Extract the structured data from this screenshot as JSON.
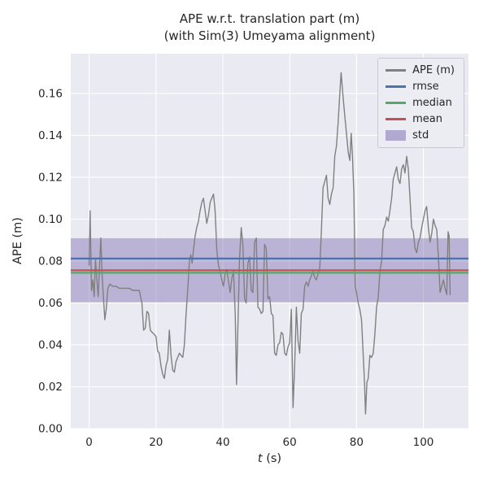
{
  "chart_data": {
    "type": "line",
    "title_line1": "APE w.r.t. translation part (m)",
    "title_line2": "(with Sim(3) Umeyama alignment)",
    "xlabel": "t (s)",
    "xlabel_math": "t",
    "xlabel_rest": " (s)",
    "ylabel": "APE (m)",
    "xlim": [
      -5.5,
      113.5
    ],
    "ylim": [
      0,
      0.179
    ],
    "grid": true,
    "xticks": [
      0,
      20,
      40,
      60,
      80,
      100
    ],
    "xtick_labels": [
      "0",
      "20",
      "40",
      "60",
      "80",
      "100"
    ],
    "yticks": [
      0,
      0.02,
      0.04,
      0.06,
      0.08,
      0.1,
      0.12,
      0.14,
      0.16
    ],
    "ytick_labels": [
      "0.00",
      "0.02",
      "0.04",
      "0.06",
      "0.08",
      "0.10",
      "0.12",
      "0.14",
      "0.16"
    ],
    "colors": {
      "figure_bg": "#ffffff",
      "axes_bg": "#eaeaf2",
      "grid": "#ffffff",
      "text": "#262626",
      "ape": "#808080",
      "rmse": "#4c72b0",
      "median": "#55a868",
      "mean": "#c44e52",
      "std": "#8172b2"
    },
    "stats": {
      "rmse": 0.0812,
      "median": 0.0744,
      "mean": 0.0756,
      "std_band": [
        0.0603,
        0.0909
      ]
    },
    "legend": [
      {
        "label": "APE (m)",
        "color": "#808080",
        "swatch": "line"
      },
      {
        "label": "rmse",
        "color": "#4c72b0",
        "swatch": "line"
      },
      {
        "label": "median",
        "color": "#55a868",
        "swatch": "line"
      },
      {
        "label": "mean",
        "color": "#c44e52",
        "swatch": "line"
      },
      {
        "label": "std",
        "color": "#8172b2",
        "swatch": "patch"
      }
    ],
    "series": [
      {
        "name": "APE (m)",
        "points": [
          [
            0,
            0.078
          ],
          [
            0.3,
            0.104
          ],
          [
            0.7,
            0.066
          ],
          [
            1.1,
            0.071
          ],
          [
            1.5,
            0.063
          ],
          [
            1.9,
            0.081
          ],
          [
            2.3,
            0.071
          ],
          [
            2.7,
            0.063
          ],
          [
            3.1,
            0.077
          ],
          [
            3.5,
            0.091
          ],
          [
            3.9,
            0.073
          ],
          [
            4.3,
            0.062
          ],
          [
            4.7,
            0.052
          ],
          [
            5.1,
            0.057
          ],
          [
            5.6,
            0.067
          ],
          [
            6.2,
            0.069
          ],
          [
            7,
            0.068
          ],
          [
            8,
            0.068
          ],
          [
            9,
            0.067
          ],
          [
            10,
            0.067
          ],
          [
            11,
            0.067
          ],
          [
            12,
            0.067
          ],
          [
            13,
            0.066
          ],
          [
            14,
            0.066
          ],
          [
            15,
            0.066
          ],
          [
            15.8,
            0.06
          ],
          [
            16.3,
            0.047
          ],
          [
            16.8,
            0.048
          ],
          [
            17.3,
            0.056
          ],
          [
            17.8,
            0.055
          ],
          [
            18.3,
            0.047
          ],
          [
            18.8,
            0.046
          ],
          [
            19.5,
            0.045
          ],
          [
            20,
            0.044
          ],
          [
            20.5,
            0.037
          ],
          [
            21,
            0.036
          ],
          [
            21.5,
            0.03
          ],
          [
            22,
            0.026
          ],
          [
            22.5,
            0.024
          ],
          [
            23,
            0.03
          ],
          [
            23.5,
            0.033
          ],
          [
            24,
            0.047
          ],
          [
            24.5,
            0.035
          ],
          [
            25,
            0.028
          ],
          [
            25.5,
            0.027
          ],
          [
            26,
            0.032
          ],
          [
            26.5,
            0.034
          ],
          [
            27,
            0.036
          ],
          [
            27.5,
            0.035
          ],
          [
            28,
            0.034
          ],
          [
            28.5,
            0.04
          ],
          [
            29,
            0.055
          ],
          [
            29.5,
            0.066
          ],
          [
            30,
            0.08
          ],
          [
            30.4,
            0.083
          ],
          [
            30.8,
            0.079
          ],
          [
            31.2,
            0.085
          ],
          [
            31.7,
            0.092
          ],
          [
            32.2,
            0.096
          ],
          [
            32.7,
            0.099
          ],
          [
            33.2,
            0.104
          ],
          [
            33.7,
            0.108
          ],
          [
            34.2,
            0.11
          ],
          [
            34.7,
            0.104
          ],
          [
            35.2,
            0.098
          ],
          [
            35.7,
            0.102
          ],
          [
            36.2,
            0.108
          ],
          [
            36.7,
            0.11
          ],
          [
            37.2,
            0.112
          ],
          [
            37.7,
            0.104
          ],
          [
            38.2,
            0.085
          ],
          [
            38.7,
            0.078
          ],
          [
            39.2,
            0.075
          ],
          [
            39.7,
            0.071
          ],
          [
            40.2,
            0.068
          ],
          [
            40.7,
            0.074
          ],
          [
            41.2,
            0.076
          ],
          [
            41.7,
            0.07
          ],
          [
            42.2,
            0.065
          ],
          [
            42.7,
            0.072
          ],
          [
            43.2,
            0.075
          ],
          [
            43.7,
            0.055
          ],
          [
            44.1,
            0.021
          ],
          [
            44.6,
            0.055
          ],
          [
            45,
            0.081
          ],
          [
            45.5,
            0.096
          ],
          [
            46,
            0.088
          ],
          [
            46.5,
            0.062
          ],
          [
            47,
            0.06
          ],
          [
            47.5,
            0.079
          ],
          [
            48,
            0.082
          ],
          [
            48.5,
            0.066
          ],
          [
            49,
            0.065
          ],
          [
            49.5,
            0.089
          ],
          [
            50,
            0.091
          ],
          [
            50.5,
            0.058
          ],
          [
            51,
            0.057
          ],
          [
            51.5,
            0.055
          ],
          [
            52,
            0.056
          ],
          [
            52.5,
            0.088
          ],
          [
            53,
            0.086
          ],
          [
            53.5,
            0.062
          ],
          [
            54,
            0.063
          ],
          [
            54.5,
            0.055
          ],
          [
            55,
            0.054
          ],
          [
            55.5,
            0.036
          ],
          [
            56,
            0.035
          ],
          [
            56.5,
            0.04
          ],
          [
            57,
            0.041
          ],
          [
            57.5,
            0.046
          ],
          [
            58,
            0.045
          ],
          [
            58.5,
            0.036
          ],
          [
            59,
            0.035
          ],
          [
            59.5,
            0.039
          ],
          [
            60,
            0.041
          ],
          [
            60.5,
            0.057
          ],
          [
            61,
            0.01
          ],
          [
            61.5,
            0.03
          ],
          [
            62,
            0.058
          ],
          [
            62.5,
            0.042
          ],
          [
            63,
            0.036
          ],
          [
            63.5,
            0.055
          ],
          [
            64,
            0.057
          ],
          [
            64.5,
            0.068
          ],
          [
            65,
            0.07
          ],
          [
            65.5,
            0.068
          ],
          [
            66,
            0.071
          ],
          [
            66.5,
            0.073
          ],
          [
            67,
            0.075
          ],
          [
            67.5,
            0.072
          ],
          [
            68,
            0.071
          ],
          [
            68.5,
            0.074
          ],
          [
            69,
            0.076
          ],
          [
            69.5,
            0.095
          ],
          [
            70,
            0.115
          ],
          [
            70.5,
            0.118
          ],
          [
            71,
            0.121
          ],
          [
            71.5,
            0.11
          ],
          [
            72,
            0.107
          ],
          [
            72.5,
            0.112
          ],
          [
            73,
            0.115
          ],
          [
            73.5,
            0.13
          ],
          [
            74,
            0.135
          ],
          [
            74.5,
            0.146
          ],
          [
            75,
            0.16
          ],
          [
            75.4,
            0.17
          ],
          [
            76,
            0.158
          ],
          [
            76.5,
            0.149
          ],
          [
            77,
            0.141
          ],
          [
            77.5,
            0.132
          ],
          [
            78,
            0.128
          ],
          [
            78.4,
            0.141
          ],
          [
            78.8,
            0.13
          ],
          [
            79.2,
            0.112
          ],
          [
            79.6,
            0.068
          ],
          [
            80,
            0.065
          ],
          [
            80.5,
            0.06
          ],
          [
            81,
            0.057
          ],
          [
            81.5,
            0.052
          ],
          [
            82,
            0.035
          ],
          [
            82.4,
            0.022
          ],
          [
            82.7,
            0.007
          ],
          [
            83.1,
            0.022
          ],
          [
            83.5,
            0.024
          ],
          [
            84,
            0.035
          ],
          [
            84.5,
            0.034
          ],
          [
            85,
            0.036
          ],
          [
            85.5,
            0.045
          ],
          [
            86,
            0.058
          ],
          [
            86.5,
            0.063
          ],
          [
            87,
            0.075
          ],
          [
            87.5,
            0.08
          ],
          [
            88,
            0.095
          ],
          [
            88.5,
            0.097
          ],
          [
            89,
            0.101
          ],
          [
            89.5,
            0.099
          ],
          [
            90,
            0.104
          ],
          [
            90.5,
            0.11
          ],
          [
            91,
            0.119
          ],
          [
            91.5,
            0.122
          ],
          [
            92,
            0.125
          ],
          [
            92.5,
            0.119
          ],
          [
            93,
            0.117
          ],
          [
            93.5,
            0.124
          ],
          [
            94,
            0.126
          ],
          [
            94.5,
            0.122
          ],
          [
            95,
            0.13
          ],
          [
            95.5,
            0.124
          ],
          [
            96,
            0.11
          ],
          [
            96.5,
            0.096
          ],
          [
            97,
            0.094
          ],
          [
            97.5,
            0.086
          ],
          [
            98,
            0.084
          ],
          [
            98.5,
            0.089
          ],
          [
            99,
            0.091
          ],
          [
            99.5,
            0.096
          ],
          [
            100,
            0.1
          ],
          [
            100.5,
            0.104
          ],
          [
            101,
            0.106
          ],
          [
            101.5,
            0.096
          ],
          [
            102,
            0.089
          ],
          [
            102.5,
            0.093
          ],
          [
            103,
            0.1
          ],
          [
            103.5,
            0.097
          ],
          [
            104,
            0.095
          ],
          [
            104.5,
            0.082
          ],
          [
            105,
            0.065
          ],
          [
            105.5,
            0.068
          ],
          [
            106,
            0.071
          ],
          [
            106.5,
            0.067
          ],
          [
            107,
            0.064
          ],
          [
            107.4,
            0.094
          ],
          [
            107.7,
            0.092
          ],
          [
            108,
            0.064
          ]
        ]
      }
    ]
  }
}
